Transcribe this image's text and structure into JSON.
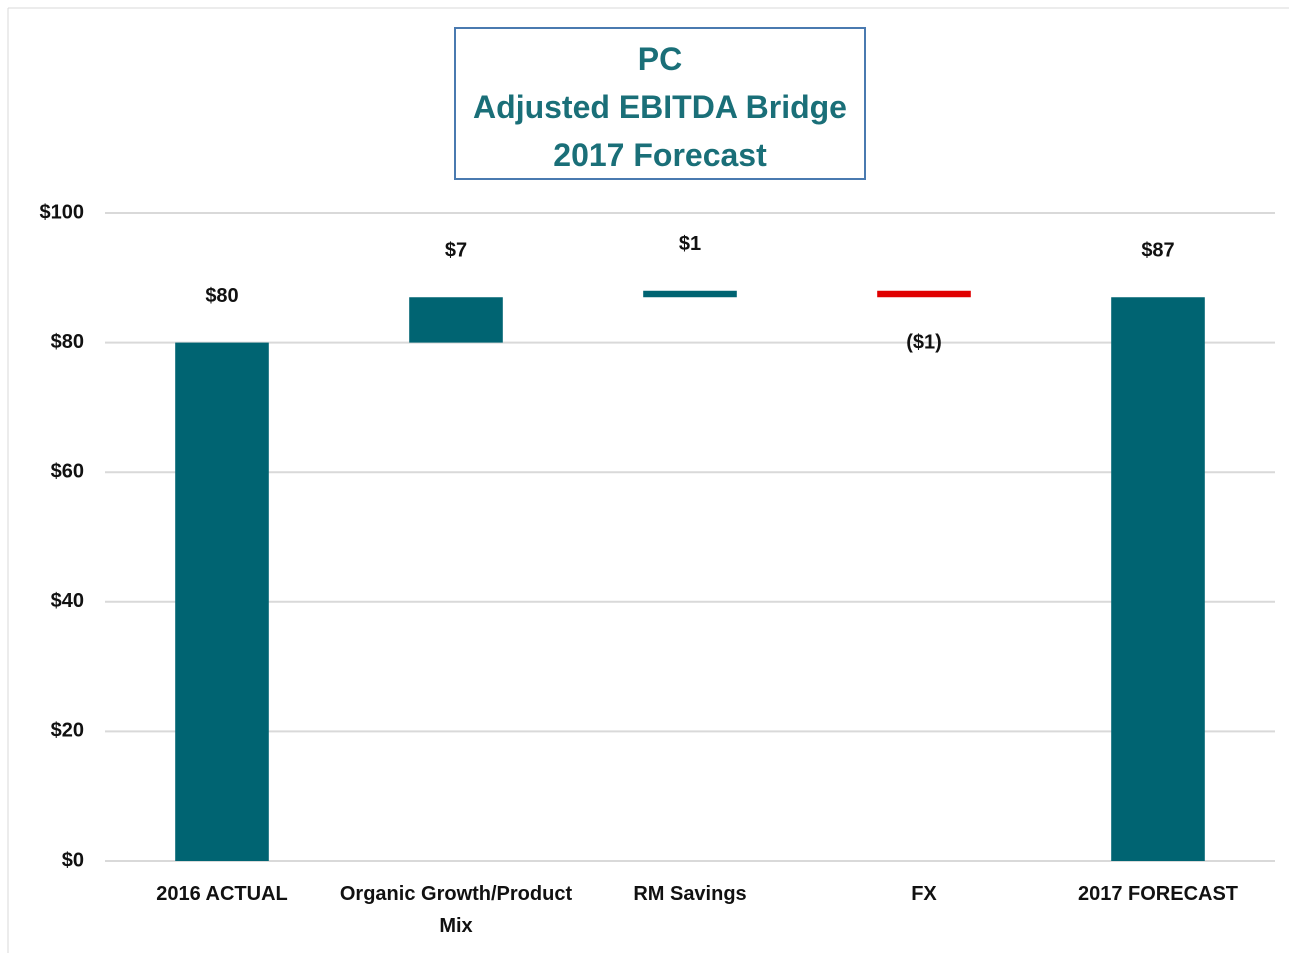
{
  "chart_data": {
    "type": "waterfall",
    "title": [
      "PC",
      "Adjusted EBITDA Bridge",
      "2017 Forecast"
    ],
    "categories": [
      "2016 ACTUAL",
      "Organic Growth/Product Mix",
      "RM Savings",
      "FX",
      "2017 FORECAST"
    ],
    "values": [
      80,
      7,
      1,
      -1,
      87
    ],
    "value_labels": [
      "$80",
      "$7",
      "$1",
      "($1)",
      "$87"
    ],
    "is_total": [
      true,
      false,
      false,
      false,
      true
    ],
    "color": "#006472",
    "negative_color": "#e00000",
    "ylim": [
      0,
      100
    ],
    "yticks": [
      {
        "value": 0,
        "label": "$0"
      },
      {
        "value": 20,
        "label": "$20"
      },
      {
        "value": 40,
        "label": "$40"
      },
      {
        "value": 60,
        "label": "$60"
      },
      {
        "value": 80,
        "label": "$80"
      },
      {
        "value": 100,
        "label": "$100"
      }
    ],
    "grid": true
  }
}
